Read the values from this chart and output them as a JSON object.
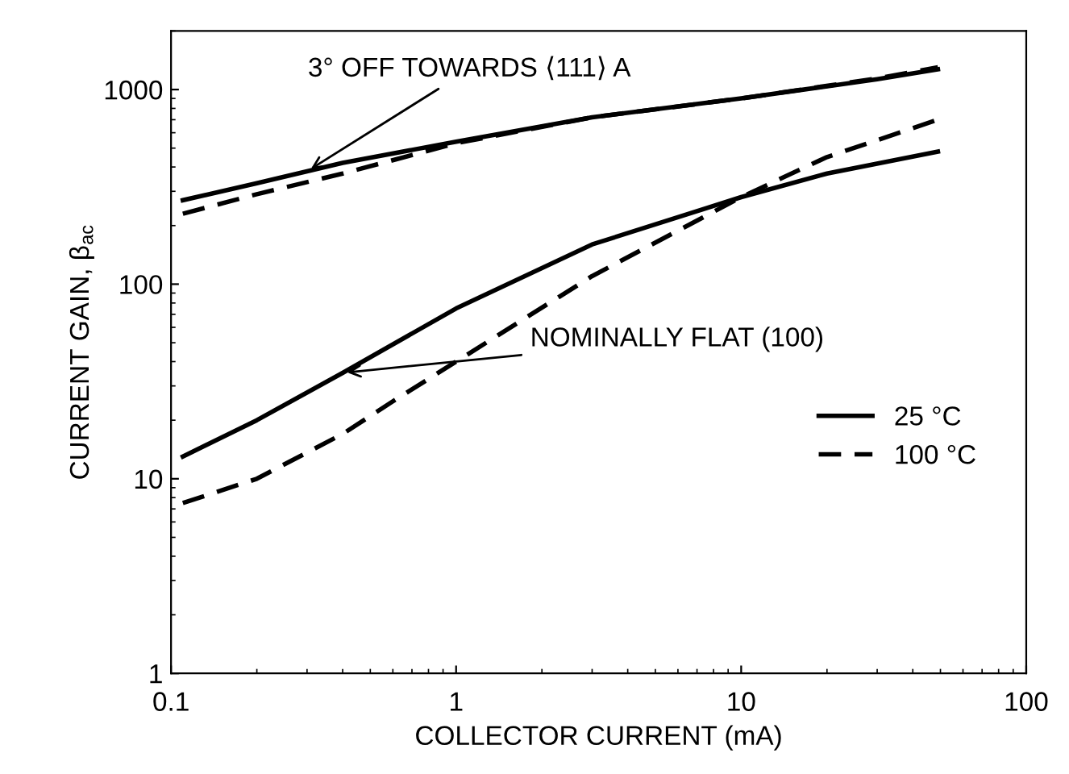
{
  "chart_data": {
    "type": "line",
    "xlabel": "COLLECTOR CURRENT (mA)",
    "ylabel": "CURRENT GAIN, β$_{ac}$",
    "log": "xy",
    "xlim": [
      0.1,
      100
    ],
    "ylim": [
      1,
      2000
    ],
    "xticks": [
      0.1,
      1,
      10,
      100
    ],
    "yticks": [
      1,
      10,
      100,
      1000
    ],
    "grid": false,
    "legend": "bottom right",
    "marker": "none",
    "series": [
      {
        "name": "25 °C",
        "color": "#000000",
        "line_style": "solid",
        "x": [
          0.11,
          0.2,
          0.4,
          1,
          3,
          10,
          30,
          49
        ],
        "values": [
          270,
          330,
          420,
          540,
          720,
          900,
          1130,
          1270
        ]
      },
      {
        "color": "#000000",
        "line_style": "dashed",
        "x": [
          0.11,
          0.2,
          0.4,
          1,
          3,
          10,
          30,
          49
        ],
        "values": [
          230,
          290,
          370,
          530,
          720,
          900,
          1140,
          1300
        ]
      },
      {
        "color": "#000000",
        "line_style": "solid",
        "x": [
          0.11,
          0.2,
          0.4,
          1,
          3,
          10,
          20,
          49
        ],
        "values": [
          13,
          20,
          35,
          75,
          160,
          280,
          370,
          480
        ]
      },
      {
        "name": "100 °C",
        "color": "#000000",
        "line_style": "dashed",
        "x": [
          0.11,
          0.2,
          0.4,
          0.6,
          1,
          3,
          10,
          20,
          49
        ],
        "values": [
          7.5,
          10,
          17,
          25,
          40,
          110,
          280,
          450,
          700
        ]
      }
    ],
    "annotations": [
      {
        "text": "3° OFF TOWARDS ⟨111⟩ A",
        "x": 0.3,
        "y": 380
      },
      {
        "text": "NOMINALLY FLAT (100)",
        "x": 0.4,
        "y": 35
      }
    ]
  }
}
